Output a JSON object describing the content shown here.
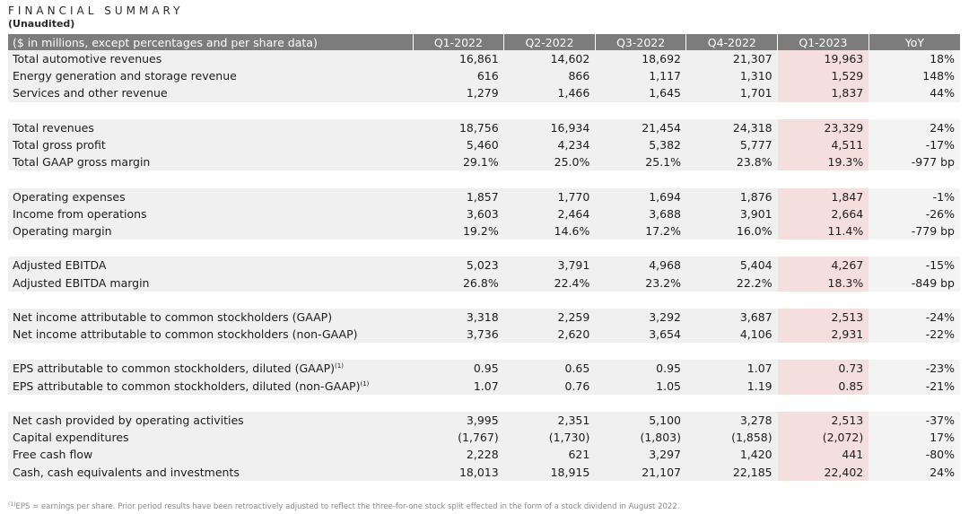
{
  "title": "FINANCIAL SUMMARY",
  "subtitle": "(Unaudited)",
  "header": {
    "label": "($ in millions, except percentages and per share data)",
    "columns": [
      "Q1-2022",
      "Q2-2022",
      "Q3-2022",
      "Q4-2022",
      "Q1-2023",
      "YoY"
    ]
  },
  "groups": [
    [
      {
        "label": "Total automotive revenues",
        "values": [
          "16,861",
          "14,602",
          "18,692",
          "21,307",
          "19,963",
          "18%"
        ]
      },
      {
        "label": "Energy generation and storage revenue",
        "values": [
          "616",
          "866",
          "1,117",
          "1,310",
          "1,529",
          "148%"
        ]
      },
      {
        "label": "Services and other revenue",
        "values": [
          "1,279",
          "1,466",
          "1,645",
          "1,701",
          "1,837",
          "44%"
        ]
      }
    ],
    [
      {
        "label": "Total revenues",
        "values": [
          "18,756",
          "16,934",
          "21,454",
          "24,318",
          "23,329",
          "24%"
        ]
      },
      {
        "label": "Total gross profit",
        "values": [
          "5,460",
          "4,234",
          "5,382",
          "5,777",
          "4,511",
          "-17%"
        ]
      },
      {
        "label": "Total GAAP gross margin",
        "values": [
          "29.1%",
          "25.0%",
          "25.1%",
          "23.8%",
          "19.3%",
          "-977 bp"
        ]
      }
    ],
    [
      {
        "label": "Operating expenses",
        "values": [
          "1,857",
          "1,770",
          "1,694",
          "1,876",
          "1,847",
          "-1%"
        ]
      },
      {
        "label": "Income from operations",
        "values": [
          "3,603",
          "2,464",
          "3,688",
          "3,901",
          "2,664",
          "-26%"
        ]
      },
      {
        "label": "Operating margin",
        "values": [
          "19.2%",
          "14.6%",
          "17.2%",
          "16.0%",
          "11.4%",
          "-779 bp"
        ]
      }
    ],
    [
      {
        "label": "Adjusted EBITDA",
        "values": [
          "5,023",
          "3,791",
          "4,968",
          "5,404",
          "4,267",
          "-15%"
        ]
      },
      {
        "label": "Adjusted EBITDA margin",
        "values": [
          "26.8%",
          "22.4%",
          "23.2%",
          "22.2%",
          "18.3%",
          "-849 bp"
        ]
      }
    ],
    [
      {
        "label": "Net income attributable to common stockholders (GAAP)",
        "values": [
          "3,318",
          "2,259",
          "3,292",
          "3,687",
          "2,513",
          "-24%"
        ]
      },
      {
        "label": "Net income attributable to common stockholders (non-GAAP)",
        "values": [
          "3,736",
          "2,620",
          "3,654",
          "4,106",
          "2,931",
          "-22%"
        ]
      }
    ],
    [
      {
        "label": "EPS attributable to common stockholders, diluted (GAAP)",
        "sup": "(1)",
        "values": [
          "0.95",
          "0.65",
          "0.95",
          "1.07",
          "0.73",
          "-23%"
        ]
      },
      {
        "label": "EPS attributable to common stockholders, diluted (non-GAAP)",
        "sup": "(1)",
        "values": [
          "1.07",
          "0.76",
          "1.05",
          "1.19",
          "0.85",
          "-21%"
        ]
      }
    ],
    [
      {
        "label": "Net cash provided by operating activities",
        "values": [
          "3,995",
          "2,351",
          "5,100",
          "3,278",
          "2,513",
          "-37%"
        ]
      },
      {
        "label": "Capital expenditures",
        "values": [
          "(1,767)",
          "(1,730)",
          "(1,803)",
          "(1,858)",
          "(2,072)",
          "17%"
        ]
      },
      {
        "label": "Free cash flow",
        "values": [
          "2,228",
          "621",
          "3,297",
          "1,420",
          "441",
          "-80%"
        ]
      },
      {
        "label": "Cash, cash equivalents and investments",
        "values": [
          "18,013",
          "18,915",
          "21,107",
          "22,185",
          "22,402",
          "24%"
        ]
      }
    ]
  ],
  "footnote": {
    "marker": "(1)",
    "text": "EPS = earnings per share. Prior period results have been retroactively adjusted to reflect the three-for-one stock split effected in the form of a stock dividend in August 2022."
  },
  "colors": {
    "header_bg": "#7c7c7c",
    "row_bg": "#f0f0f0",
    "highlight_bg": "#f5dede"
  }
}
